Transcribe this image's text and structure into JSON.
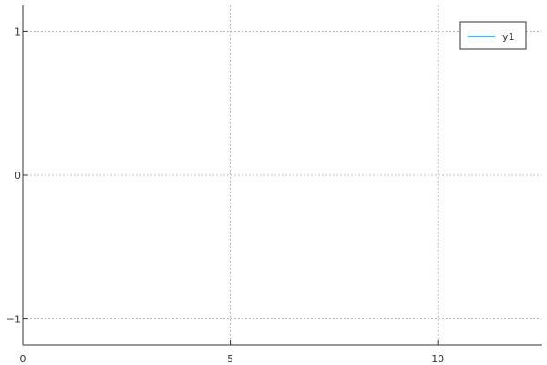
{
  "chart_data": {
    "type": "line",
    "title": "",
    "xlabel": "",
    "ylabel": "",
    "xlim": [
      0,
      12.5
    ],
    "ylim": [
      -1.18,
      1.18
    ],
    "x_ticks": [
      0,
      5,
      10
    ],
    "x_tick_labels": [
      "0",
      "5",
      "10"
    ],
    "y_ticks": [
      -1,
      0,
      1
    ],
    "y_tick_labels": [
      "−1",
      "0",
      "1"
    ],
    "grid": true,
    "grid_style": "dotted",
    "legend_position": "top-right",
    "series": [
      {
        "name": "y1",
        "color": "#009AFA",
        "x": [],
        "y": []
      }
    ]
  }
}
